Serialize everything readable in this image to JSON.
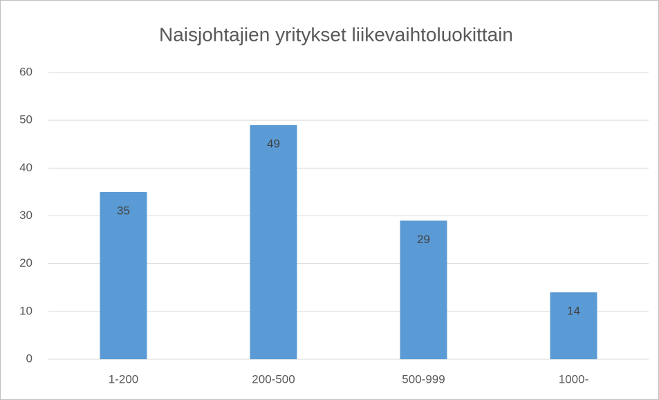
{
  "chart_data": {
    "type": "bar",
    "title": "Naisjohtajien yritykset liikevaihtoluokittain",
    "categories": [
      "1-200",
      "200-500",
      "500-999",
      "1000-"
    ],
    "values": [
      35,
      49,
      29,
      14
    ],
    "color": "#5b9bd5",
    "ylim": [
      0,
      60
    ],
    "yticks": [
      0,
      10,
      20,
      30,
      40,
      50,
      60
    ],
    "grid": true
  }
}
